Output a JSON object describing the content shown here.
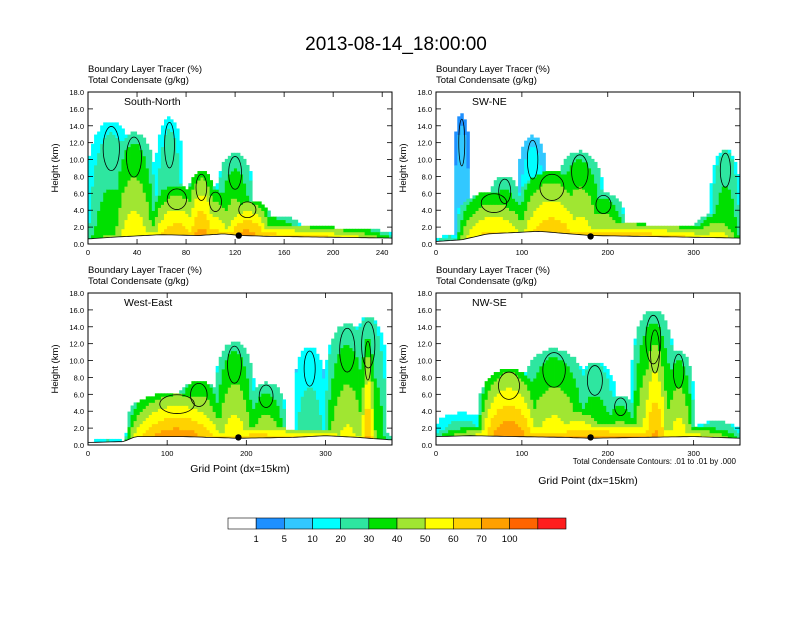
{
  "figure": {
    "title": "2013-08-14_18:00:00",
    "contour_note": "Total Condensate Contours: .01 to .01 by .000"
  },
  "colors": {
    "levels": [
      "#ffffff",
      "#1e90ff",
      "#32c8ff",
      "#00ffff",
      "#2ee6a0",
      "#00e000",
      "#a0e632",
      "#ffff00",
      "#ffd200",
      "#ffa000",
      "#ff6400",
      "#ff1e1e"
    ],
    "contour": "#000000",
    "marker": "#000000"
  },
  "colorbar": {
    "labels": [
      "1",
      "5",
      "10",
      "20",
      "30",
      "40",
      "50",
      "60",
      "70",
      "100"
    ]
  },
  "chart_data": [
    {
      "type": "heatmap",
      "panel": "South-North",
      "title_line1": "Boundary Layer Tracer   (%)",
      "title_line2": "Total Condensate   (g/kg)",
      "ylabel": "Height (km)",
      "xlabel": "",
      "xlim": [
        0,
        248
      ],
      "ylim": [
        0,
        18
      ],
      "xticks": [
        0,
        40,
        80,
        120,
        160,
        200,
        240
      ],
      "yticks": [
        "0.0",
        "2.0",
        "4.0",
        "6.0",
        "8.0",
        "10.0",
        "12.0",
        "14.0",
        "16.0",
        "18.0"
      ],
      "terrain": [
        [
          0,
          0.6
        ],
        [
          20,
          0.8
        ],
        [
          45,
          1.0
        ],
        [
          60,
          1.1
        ],
        [
          90,
          1.0
        ],
        [
          110,
          1.2
        ],
        [
          125,
          1.0
        ],
        [
          150,
          0.9
        ],
        [
          200,
          0.8
        ],
        [
          248,
          0.7
        ]
      ],
      "marker": [
        123,
        1.0
      ],
      "plumes": [
        {
          "x0": 0,
          "x1": 248,
          "top": 2.2,
          "peak": 90
        },
        {
          "x0": 0,
          "x1": 38,
          "top": 14.5,
          "peak": 40
        },
        {
          "x0": 20,
          "x1": 55,
          "top": 13.2,
          "peak": 60
        },
        {
          "x0": 50,
          "x1": 95,
          "top": 6.8,
          "peak": 75
        },
        {
          "x0": 80,
          "x1": 105,
          "top": 8.6,
          "peak": 80
        },
        {
          "x0": 90,
          "x1": 118,
          "top": 6.4,
          "peak": 70
        },
        {
          "x0": 105,
          "x1": 135,
          "top": 10.8,
          "peak": 55
        },
        {
          "x0": 110,
          "x1": 150,
          "top": 5.2,
          "peak": 85
        },
        {
          "x0": 125,
          "x1": 175,
          "top": 3.4,
          "peak": 60
        },
        {
          "x0": 55,
          "x1": 78,
          "top": 15.0,
          "peak": 40
        }
      ]
    },
    {
      "type": "heatmap",
      "panel": "SW-NE",
      "title_line1": "Boundary Layer Tracer   (%)",
      "title_line2": "Total Condensate   (g/kg)",
      "ylabel": "Height (km)",
      "xlabel": "",
      "xlim": [
        0,
        354
      ],
      "ylim": [
        0,
        18
      ],
      "xticks": [
        0,
        100,
        200,
        300
      ],
      "yticks": [
        "0.0",
        "2.0",
        "4.0",
        "6.0",
        "8.0",
        "10.0",
        "12.0",
        "14.0",
        "16.0",
        "18.0"
      ],
      "terrain": [
        [
          0,
          0.3
        ],
        [
          30,
          0.5
        ],
        [
          60,
          1.2
        ],
        [
          120,
          1.5
        ],
        [
          180,
          1.0
        ],
        [
          240,
          0.9
        ],
        [
          300,
          0.8
        ],
        [
          354,
          0.7
        ]
      ],
      "marker": [
        180,
        0.9
      ],
      "plumes": [
        {
          "x0": 0,
          "x1": 30,
          "top": 1.0,
          "peak": 40
        },
        {
          "x0": 25,
          "x1": 354,
          "top": 2.4,
          "peak": 90
        },
        {
          "x0": 25,
          "x1": 110,
          "top": 6.2,
          "peak": 70
        },
        {
          "x0": 60,
          "x1": 100,
          "top": 8.0,
          "peak": 55
        },
        {
          "x0": 95,
          "x1": 175,
          "top": 8.6,
          "peak": 75
        },
        {
          "x0": 140,
          "x1": 195,
          "top": 11.0,
          "peak": 60
        },
        {
          "x0": 170,
          "x1": 220,
          "top": 6.0,
          "peak": 60
        },
        {
          "x0": 320,
          "x1": 354,
          "top": 11.2,
          "peak": 45
        },
        {
          "x0": 300,
          "x1": 354,
          "top": 3.6,
          "peak": 65
        },
        {
          "x0": 20,
          "x1": 40,
          "top": 15.4,
          "peak": 10
        },
        {
          "x0": 95,
          "x1": 130,
          "top": 12.8,
          "peak": 20
        }
      ]
    },
    {
      "type": "heatmap",
      "panel": "West-East",
      "title_line1": "Boundary Layer Tracer   (%)",
      "title_line2": "Total Condensate   (g/kg)",
      "ylabel": "Height (km)",
      "xlabel": "Grid Point (dx=15km)",
      "xlim": [
        0,
        384
      ],
      "ylim": [
        0,
        18
      ],
      "xticks": [
        0,
        100,
        200,
        300
      ],
      "yticks": [
        "0.0",
        "2.0",
        "4.0",
        "6.0",
        "8.0",
        "10.0",
        "12.0",
        "14.0",
        "16.0",
        "18.0"
      ],
      "terrain": [
        [
          0,
          0.3
        ],
        [
          45,
          0.4
        ],
        [
          60,
          1.0
        ],
        [
          120,
          1.0
        ],
        [
          190,
          0.8
        ],
        [
          260,
          0.9
        ],
        [
          300,
          1.1
        ],
        [
          340,
          0.9
        ],
        [
          384,
          0.6
        ]
      ],
      "marker": [
        190,
        0.9
      ],
      "plumes": [
        {
          "x0": 0,
          "x1": 50,
          "top": 0.6,
          "peak": 40
        },
        {
          "x0": 45,
          "x1": 384,
          "top": 2.0,
          "peak": 92
        },
        {
          "x0": 50,
          "x1": 175,
          "top": 6.2,
          "peak": 85
        },
        {
          "x0": 110,
          "x1": 170,
          "top": 7.6,
          "peak": 70
        },
        {
          "x0": 160,
          "x1": 210,
          "top": 12.2,
          "peak": 60
        },
        {
          "x0": 200,
          "x1": 250,
          "top": 7.4,
          "peak": 55
        },
        {
          "x0": 260,
          "x1": 300,
          "top": 11.6,
          "peak": 30
        },
        {
          "x0": 300,
          "x1": 355,
          "top": 14.4,
          "peak": 55
        },
        {
          "x0": 330,
          "x1": 378,
          "top": 15.2,
          "peak": 45
        },
        {
          "x0": 345,
          "x1": 362,
          "top": 12.8,
          "peak": 75
        }
      ]
    },
    {
      "type": "heatmap",
      "panel": "NW-SE",
      "title_line1": "Boundary Layer Tracer   (%)",
      "title_line2": "Total Condensate   (g/kg)",
      "ylabel": "Height (km)",
      "xlabel": "Grid Point (dx=15km)",
      "xlim": [
        0,
        354
      ],
      "ylim": [
        0,
        18
      ],
      "xticks": [
        0,
        100,
        200,
        300
      ],
      "yticks": [
        "0.0",
        "2.0",
        "4.0",
        "6.0",
        "8.0",
        "10.0",
        "12.0",
        "14.0",
        "16.0",
        "18.0"
      ],
      "terrain": [
        [
          0,
          1.0
        ],
        [
          40,
          1.1
        ],
        [
          90,
          1.0
        ],
        [
          150,
          0.9
        ],
        [
          180,
          0.8
        ],
        [
          240,
          0.9
        ],
        [
          300,
          1.0
        ],
        [
          354,
          0.8
        ]
      ],
      "marker": [
        180,
        0.9
      ],
      "plumes": [
        {
          "x0": 0,
          "x1": 354,
          "top": 2.6,
          "peak": 92
        },
        {
          "x0": 0,
          "x1": 60,
          "top": 3.8,
          "peak": 35
        },
        {
          "x0": 50,
          "x1": 120,
          "top": 9.0,
          "peak": 85
        },
        {
          "x0": 100,
          "x1": 175,
          "top": 11.4,
          "peak": 60
        },
        {
          "x0": 130,
          "x1": 200,
          "top": 4.2,
          "peak": 80
        },
        {
          "x0": 160,
          "x1": 210,
          "top": 9.8,
          "peak": 45
        },
        {
          "x0": 195,
          "x1": 235,
          "top": 5.8,
          "peak": 55
        },
        {
          "x0": 228,
          "x1": 278,
          "top": 16.0,
          "peak": 60
        },
        {
          "x0": 240,
          "x1": 270,
          "top": 14.2,
          "peak": 75
        },
        {
          "x0": 265,
          "x1": 300,
          "top": 11.2,
          "peak": 60
        },
        {
          "x0": 300,
          "x1": 354,
          "top": 2.8,
          "peak": 45
        }
      ]
    }
  ]
}
